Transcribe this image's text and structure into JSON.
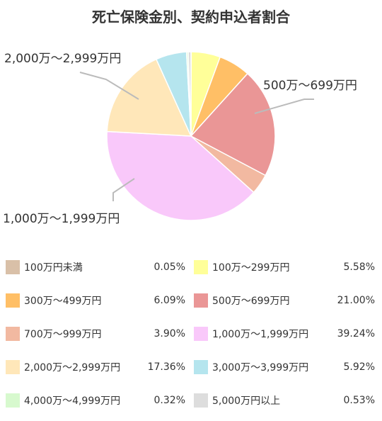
{
  "chart_data": {
    "type": "pie",
    "title": "死亡保険金別、契約申込者割合",
    "slices": [
      {
        "label": "100万円未満",
        "value": 0.05,
        "display": "0.05%",
        "color": "#D9C0A8"
      },
      {
        "label": "100万〜299万円",
        "value": 5.58,
        "display": "5.58%",
        "color": "#FFFF99"
      },
      {
        "label": "300万〜499万円",
        "value": 6.09,
        "display": "6.09%",
        "color": "#FFBF66"
      },
      {
        "label": "500万〜699万円",
        "value": 21.0,
        "display": "21.00%",
        "color": "#EA9696"
      },
      {
        "label": "700万〜999万円",
        "value": 3.9,
        "display": "3.90%",
        "color": "#F2B9A1"
      },
      {
        "label": "1,000万〜1,999万円",
        "value": 39.24,
        "display": "39.24%",
        "color": "#F9C8FA"
      },
      {
        "label": "2,000万〜2,999万円",
        "value": 17.36,
        "display": "17.36%",
        "color": "#FFE7B9"
      },
      {
        "label": "3,000万〜3,999万円",
        "value": 5.92,
        "display": "5.92%",
        "color": "#B5E5EE"
      },
      {
        "label": "4,000万〜4,999万円",
        "value": 0.32,
        "display": "0.32%",
        "color": "#D7F9CE"
      },
      {
        "label": "5,000万円以上",
        "value": 0.53,
        "display": "0.53%",
        "color": "#DDDDDD"
      }
    ],
    "callouts": [
      {
        "label": "2,000万〜2,999万円"
      },
      {
        "label": "500万〜699万円"
      },
      {
        "label": "1,000万〜1,999万円"
      }
    ],
    "legend_position": "bottom"
  }
}
